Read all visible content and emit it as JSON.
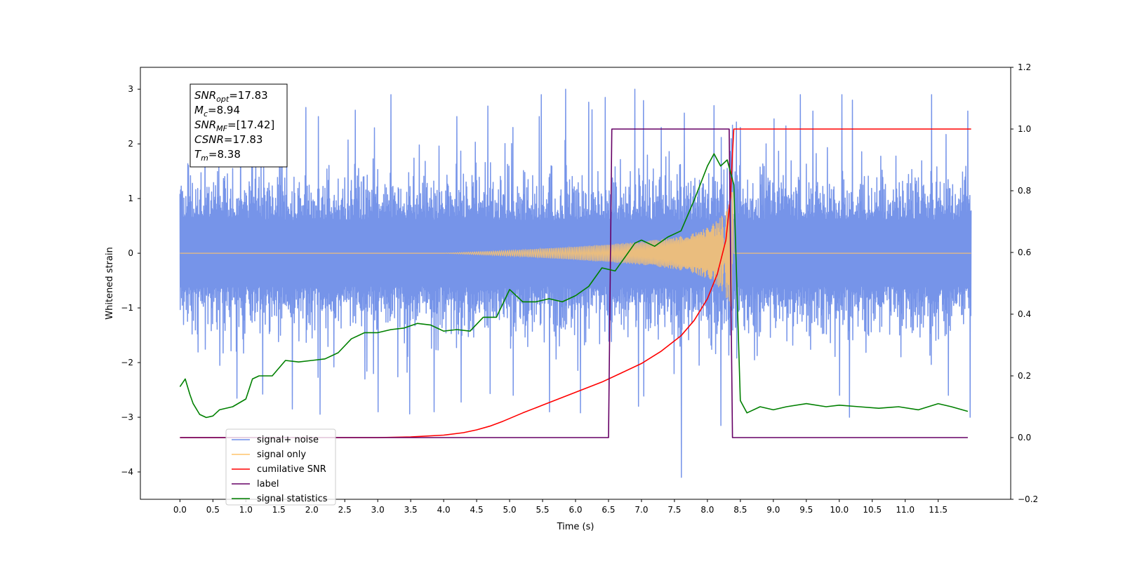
{
  "chart_data": {
    "type": "line",
    "xlabel": "Time (s)",
    "ylabel": "Whitened strain",
    "xlim": [
      -0.6,
      12.6
    ],
    "ylim": [
      -4.5,
      3.4
    ],
    "ylim_right": [
      -0.2,
      1.2
    ],
    "x_ticks": [
      0.0,
      0.5,
      1.0,
      1.5,
      2.0,
      2.5,
      3.0,
      3.5,
      4.0,
      4.5,
      5.0,
      5.5,
      6.0,
      6.5,
      7.0,
      7.5,
      8.0,
      8.5,
      9.0,
      9.5,
      10.0,
      10.5,
      11.0,
      11.5
    ],
    "y_ticks": [
      -4,
      -3,
      -2,
      -1,
      0,
      1,
      2,
      3
    ],
    "y_ticks_right": [
      -0.2,
      0.0,
      0.2,
      0.4,
      0.6,
      0.8,
      1.0,
      1.2
    ],
    "legend_location": "lower-left",
    "legend": [
      {
        "label": "signal+ noise",
        "color": "#6f8ee8"
      },
      {
        "label": "signal only",
        "color": "#ffc46b"
      },
      {
        "label": "cumilative SNR",
        "color": "#ff0000"
      },
      {
        "label": "label",
        "color": "#660066"
      },
      {
        "label": "signal statistics",
        "color": "#008000"
      }
    ],
    "stats_box": [
      {
        "sym": "SNR",
        "sub": "opt",
        "value": "=17.83"
      },
      {
        "sym": "M",
        "sub": "c",
        "value": "=8.94"
      },
      {
        "sym": "SNR",
        "sub": "MF",
        "value": "=[17.42]"
      },
      {
        "sym": "CSNR",
        "sub": "",
        "value": "=17.83"
      },
      {
        "sym": "T",
        "sub": "m",
        "value": "=8.38"
      }
    ],
    "series": [
      {
        "name": "signal+ noise",
        "axis": "left",
        "color": "#6f8ee8",
        "x_range": [
          0.0,
          12.0
        ],
        "band": [
          -1.3,
          1.3
        ],
        "extreme_peaks": [
          [
            0.8,
            1.55
          ],
          [
            1.55,
            1.6
          ],
          [
            2.1,
            2.5
          ],
          [
            3.2,
            2.9
          ],
          [
            4.2,
            2.5
          ],
          [
            5.05,
            2.3
          ],
          [
            5.45,
            2.5
          ],
          [
            5.85,
            3.0
          ],
          [
            6.45,
            2.85
          ],
          [
            6.9,
            3.0
          ],
          [
            7.3,
            2.3
          ],
          [
            8.1,
            2.7
          ],
          [
            8.5,
            2.3
          ],
          [
            9.6,
            2.6
          ],
          [
            10.2,
            2.8
          ],
          [
            11.4,
            2.9
          ],
          [
            11.95,
            2.6
          ]
        ],
        "extreme_troughs": [
          [
            0.6,
            -2.05
          ],
          [
            1.7,
            -2.85
          ],
          [
            2.8,
            -2.3
          ],
          [
            3.0,
            -2.9
          ],
          [
            3.85,
            -2.9
          ],
          [
            5.05,
            -2.6
          ],
          [
            5.6,
            -2.9
          ],
          [
            6.95,
            -2.8
          ],
          [
            7.6,
            -4.1
          ],
          [
            8.2,
            -3.15
          ],
          [
            10.0,
            -2.6
          ],
          [
            11.65,
            -2.6
          ]
        ]
      },
      {
        "name": "signal only",
        "axis": "left",
        "color": "#ffc46b",
        "x": [
          0.0,
          4.0,
          5.0,
          6.0,
          7.0,
          7.5,
          7.8,
          8.0,
          8.1,
          8.2,
          8.28,
          8.35,
          8.38,
          8.4,
          12.0
        ],
        "envelope": [
          0.0,
          0.0,
          0.05,
          0.12,
          0.21,
          0.29,
          0.37,
          0.47,
          0.55,
          0.66,
          0.8,
          0.98,
          1.2,
          0.0,
          0.0
        ]
      },
      {
        "name": "cumilative SNR",
        "axis": "right",
        "color": "#ff0000",
        "x": [
          0.0,
          3.0,
          3.5,
          4.0,
          4.3,
          4.5,
          4.7,
          4.9,
          5.2,
          5.5,
          5.8,
          6.1,
          6.4,
          6.7,
          7.0,
          7.3,
          7.6,
          7.8,
          8.0,
          8.15,
          8.28,
          8.35,
          8.38,
          8.4,
          12.0
        ],
        "y": [
          0.0,
          0.0,
          0.002,
          0.008,
          0.016,
          0.025,
          0.037,
          0.053,
          0.08,
          0.105,
          0.13,
          0.155,
          0.18,
          0.21,
          0.24,
          0.28,
          0.33,
          0.38,
          0.45,
          0.53,
          0.64,
          0.78,
          0.92,
          1.0,
          1.0
        ]
      },
      {
        "name": "label",
        "axis": "right",
        "color": "#660066",
        "x": [
          0.0,
          6.5,
          6.55,
          8.33,
          8.38,
          11.95
        ],
        "y": [
          0.0,
          0.0,
          1.0,
          1.0,
          0.0,
          0.0
        ]
      },
      {
        "name": "signal statistics",
        "axis": "right",
        "color": "#008000",
        "x": [
          0.0,
          0.08,
          0.15,
          0.2,
          0.3,
          0.4,
          0.5,
          0.6,
          0.8,
          1.0,
          1.1,
          1.2,
          1.4,
          1.6,
          1.8,
          2.0,
          2.2,
          2.4,
          2.6,
          2.8,
          3.0,
          3.2,
          3.4,
          3.6,
          3.8,
          4.0,
          4.2,
          4.4,
          4.6,
          4.8,
          5.0,
          5.2,
          5.4,
          5.6,
          5.8,
          6.0,
          6.2,
          6.4,
          6.6,
          6.8,
          6.9,
          7.0,
          7.2,
          7.4,
          7.6,
          7.8,
          8.0,
          8.1,
          8.2,
          8.3,
          8.4,
          8.5,
          8.6,
          8.8,
          9.0,
          9.2,
          9.5,
          9.8,
          10.0,
          10.3,
          10.6,
          10.9,
          11.2,
          11.5,
          11.7,
          11.95
        ],
        "y": [
          0.165,
          0.19,
          0.14,
          0.11,
          0.075,
          0.065,
          0.07,
          0.09,
          0.1,
          0.125,
          0.19,
          0.2,
          0.2,
          0.25,
          0.245,
          0.25,
          0.255,
          0.275,
          0.32,
          0.34,
          0.34,
          0.35,
          0.355,
          0.37,
          0.365,
          0.345,
          0.35,
          0.345,
          0.39,
          0.39,
          0.48,
          0.44,
          0.44,
          0.45,
          0.44,
          0.46,
          0.49,
          0.55,
          0.54,
          0.6,
          0.63,
          0.64,
          0.62,
          0.65,
          0.67,
          0.77,
          0.88,
          0.92,
          0.88,
          0.9,
          0.82,
          0.12,
          0.08,
          0.1,
          0.09,
          0.1,
          0.11,
          0.1,
          0.105,
          0.1,
          0.095,
          0.1,
          0.09,
          0.11,
          0.1,
          0.085
        ]
      }
    ]
  }
}
